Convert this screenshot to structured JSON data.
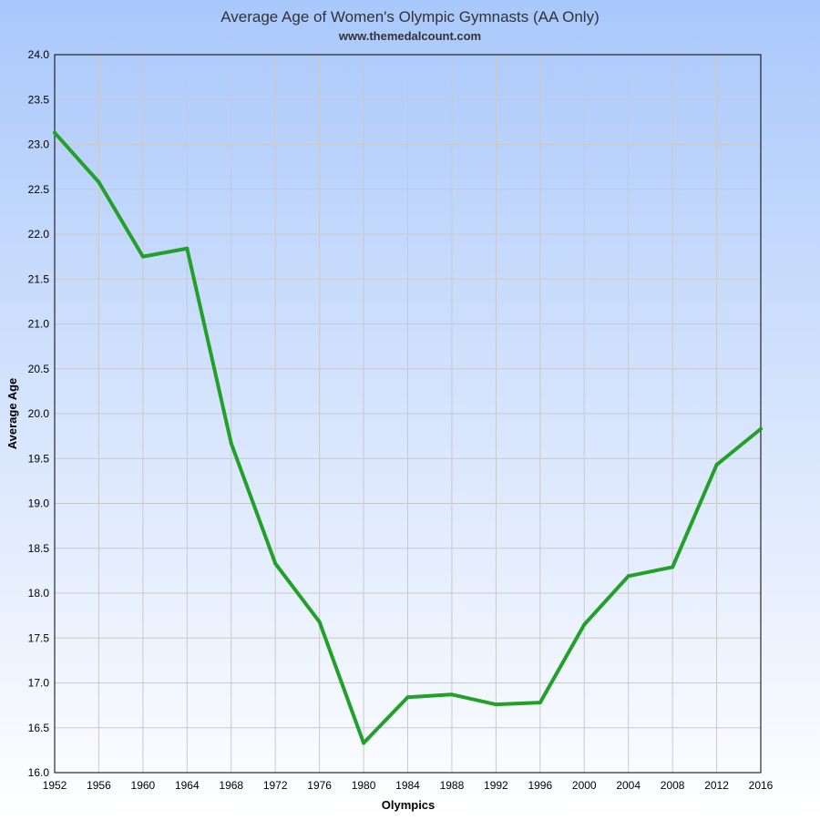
{
  "chart_data": {
    "type": "line",
    "title": "Average Age of Women's Olympic Gymnasts (AA Only)",
    "subtitle": "www.themedalcount.com",
    "xlabel": "Olympics",
    "ylabel": "Average Age",
    "categories": [
      "1952",
      "1956",
      "1960",
      "1964",
      "1968",
      "1972",
      "1976",
      "1980",
      "1984",
      "1988",
      "1992",
      "1996",
      "2000",
      "2004",
      "2008",
      "2012",
      "2016"
    ],
    "series": [
      {
        "name": "Average Age",
        "color": "#22a02a",
        "values": [
          23.13,
          22.58,
          21.75,
          21.84,
          19.67,
          18.33,
          17.68,
          16.33,
          16.84,
          16.87,
          16.76,
          16.78,
          17.65,
          18.19,
          18.29,
          19.43,
          19.83
        ]
      }
    ],
    "ylim": [
      16.0,
      24.0
    ],
    "yticks": [
      "16.0",
      "16.5",
      "17.0",
      "17.5",
      "18.0",
      "18.5",
      "19.0",
      "19.5",
      "20.0",
      "20.5",
      "21.0",
      "21.5",
      "22.0",
      "22.5",
      "23.0",
      "23.5",
      "24.0"
    ],
    "grid": true
  }
}
